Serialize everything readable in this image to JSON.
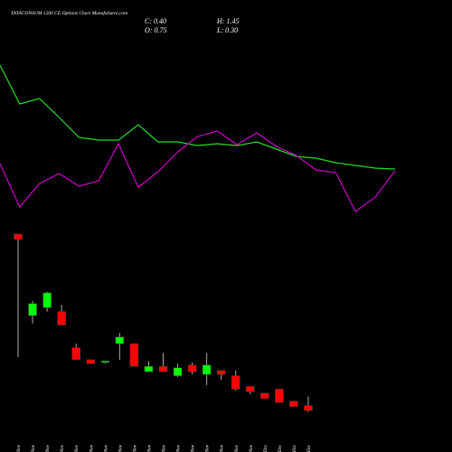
{
  "chart_data": {
    "type": "candlestick",
    "title": "TATACONSUM 1200 CE Options Chart MunafaSutra.com",
    "info": [
      "C: 0.40",
      "O: 0.75",
      "H: 1.45",
      "L: 0.30"
    ],
    "categories": [
      "03 Nov",
      "04 Nov",
      "06 Nov",
      "07 Nov",
      "10 Nov",
      "12 Nov",
      "14 Nov",
      "17 Nov",
      "18 Nov",
      "19 Nov",
      "20 Nov",
      "21 Nov",
      "24 Nov",
      "25 Nov",
      "26 Nov",
      "27 Nov",
      "28 Nov",
      "01 Dec",
      "02 Dec",
      "03 Dec",
      "04 Dec"
    ],
    "open": [
      13.6,
      7.5,
      8.1,
      7.8,
      5.1,
      4.2,
      4.0,
      5.4,
      5.4,
      3.3,
      3.7,
      3.0,
      3.8,
      3.1,
      3.4,
      3.0,
      2.2,
      1.7,
      2.0,
      1.1,
      0.75
    ],
    "high": [
      13.6,
      8.6,
      9.3,
      8.3,
      5.4,
      4.2,
      4.1,
      6.2,
      5.4,
      4.1,
      4.7,
      3.9,
      4.0,
      4.7,
      3.4,
      3.4,
      2.2,
      1.7,
      2.0,
      1.1,
      1.45
    ],
    "low": [
      4.4,
      6.9,
      7.8,
      6.8,
      4.2,
      3.9,
      3.9,
      4.2,
      3.7,
      3.3,
      3.3,
      2.9,
      3.1,
      2.3,
      2.7,
      1.9,
      1.6,
      1.3,
      1.0,
      0.7,
      0.3
    ],
    "close": [
      13.2,
      8.4,
      9.2,
      6.8,
      4.2,
      3.9,
      4.1,
      5.9,
      3.7,
      3.7,
      3.3,
      3.6,
      3.3,
      3.8,
      3.1,
      2.0,
      1.8,
      1.3,
      1.0,
      0.7,
      0.4
    ],
    "up_color": "#00ff00",
    "down_color": "#ff0000",
    "ylim": [
      0,
      14
    ],
    "series": [
      {
        "color": "#22dd22",
        "axis": "y2",
        "values": [
          178,
          135,
          141,
          120,
          98,
          95,
          95,
          112,
          93,
          93,
          89,
          91,
          89,
          93,
          85,
          77,
          75,
          70,
          67,
          64,
          63
        ]
      },
      {
        "color": "#cc00cc",
        "axis": "y2",
        "values": [
          69,
          21,
          47,
          58,
          44,
          50,
          91,
          43,
          60,
          82,
          99,
          105,
          90,
          103,
          88,
          78,
          62,
          59,
          16,
          32,
          61
        ]
      }
    ],
    "y2lim": [
      0,
      250
    ]
  }
}
